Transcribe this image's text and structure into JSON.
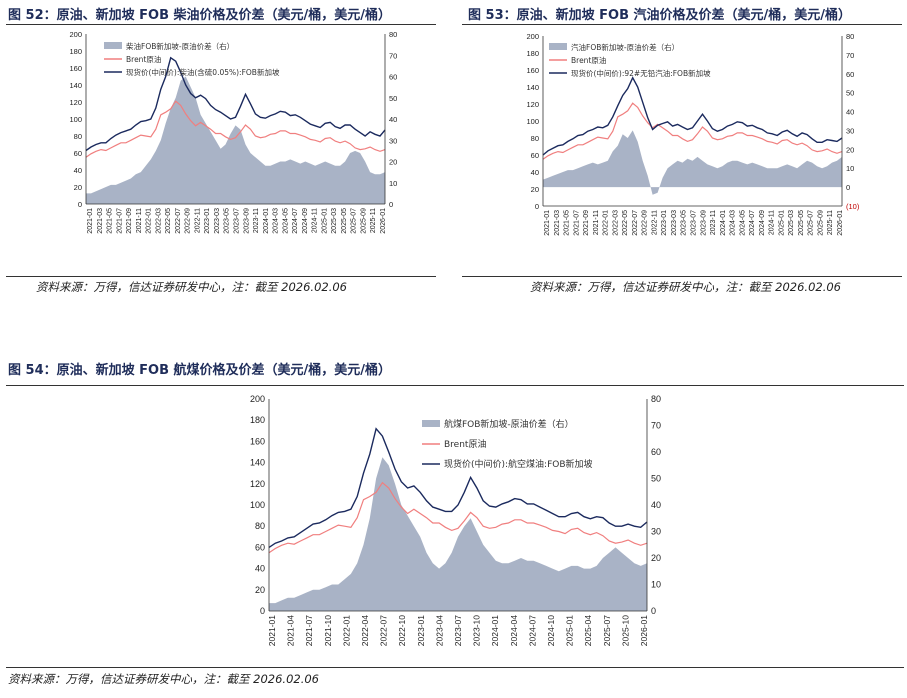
{
  "figures": [
    {
      "caption": "图 52：原油、新加坡 FOB 柴油价格及价差（美元/桶，美元/桶）",
      "source": "资料来源：万得，信达证券研发中心，注：截至 2026.02.06"
    },
    {
      "caption": "图 53：原油、新加坡 FOB 汽油价格及价差（美元/桶，美元/桶）",
      "source": "资料来源：万得，信达证券研发中心，注：截至 2026.02.06"
    },
    {
      "caption": "图 54：原油、新加坡 FOB 航煤价格及价差（美元/桶，美元/桶）",
      "source": "资料来源：万得，信达证券研发中心，注：截至 2026.02.06"
    }
  ],
  "colors": {
    "spread": "#a9b3c6",
    "brent": "#f07f7f",
    "spot": "#1b2a5e",
    "axis": "#333333"
  },
  "chart_data": [
    {
      "type": "line",
      "legend_position": "top-left",
      "left_ticks": [
        "0",
        "20",
        "40",
        "60",
        "80",
        "100",
        "120",
        "140",
        "160",
        "180",
        "200"
      ],
      "right_ticks": [
        "0",
        "10",
        "20",
        "30",
        "40",
        "50",
        "60",
        "70",
        "80"
      ],
      "ylim": [
        0,
        200
      ],
      "y2lim": [
        0,
        80
      ],
      "x_ticks": [
        "2021-01",
        "2021-03",
        "2021-05",
        "2021-07",
        "2021-09",
        "2021-11",
        "2022-01",
        "2022-03",
        "2022-05",
        "2022-07",
        "2022-09",
        "2022-11",
        "2023-01",
        "2023-03",
        "2023-05",
        "2023-07",
        "2023-09",
        "2023-11",
        "2024-01",
        "2024-03",
        "2024-05",
        "2024-07",
        "2024-09",
        "2024-11",
        "2025-01",
        "2025-03",
        "2025-05",
        "2025-07",
        "2025-09",
        "2025-11",
        "2026-01"
      ],
      "series": [
        {
          "name": "柴油FOB新加坡-原油价差（右）",
          "type": "area",
          "axis": "right",
          "values": [
            5,
            5,
            6,
            7,
            8,
            9,
            9,
            10,
            11,
            12,
            14,
            15,
            18,
            21,
            25,
            30,
            38,
            45,
            50,
            58,
            60,
            55,
            50,
            42,
            38,
            34,
            30,
            26,
            28,
            33,
            37,
            35,
            28,
            24,
            22,
            20,
            18,
            18,
            19,
            20,
            20,
            21,
            20,
            19,
            20,
            19,
            18,
            19,
            20,
            19,
            18,
            18,
            20,
            24,
            25,
            24,
            20,
            15,
            14,
            14,
            15
          ]
        },
        {
          "name": "Brent原油",
          "type": "line",
          "axis": "left",
          "values": [
            55,
            59,
            62,
            64,
            63,
            66,
            69,
            72,
            72,
            75,
            78,
            81,
            80,
            79,
            88,
            105,
            108,
            112,
            121,
            116,
            106,
            98,
            92,
            96,
            92,
            88,
            83,
            83,
            79,
            76,
            78,
            85,
            93,
            88,
            80,
            78,
            79,
            82,
            83,
            86,
            86,
            83,
            83,
            81,
            79,
            76,
            75,
            73,
            77,
            78,
            74,
            72,
            74,
            71,
            66,
            64,
            65,
            67,
            64,
            62,
            64
          ]
        },
        {
          "name": "现货价(中间价):柴油(含硫0.05%):FOB新加坡",
          "type": "line",
          "axis": "left",
          "values": [
            63,
            67,
            70,
            72,
            72,
            77,
            81,
            84,
            86,
            88,
            93,
            97,
            98,
            100,
            113,
            135,
            150,
            172,
            168,
            155,
            140,
            130,
            125,
            128,
            124,
            116,
            111,
            108,
            104,
            100,
            102,
            115,
            129,
            118,
            106,
            102,
            101,
            104,
            106,
            109,
            108,
            104,
            105,
            102,
            98,
            94,
            92,
            90,
            95,
            96,
            91,
            89,
            93,
            93,
            88,
            84,
            80,
            85,
            82,
            80,
            87
          ]
        }
      ]
    },
    {
      "type": "line",
      "legend_position": "top-left",
      "left_ticks": [
        "0",
        "20",
        "40",
        "60",
        "80",
        "100",
        "120",
        "140",
        "160",
        "180",
        "200"
      ],
      "right_ticks": [
        "(10)",
        "0",
        "10",
        "20",
        "30",
        "40",
        "50",
        "60",
        "70",
        "80"
      ],
      "ylim": [
        0,
        200
      ],
      "y2lim": [
        -10,
        80
      ],
      "x_ticks": [
        "2021-01",
        "2021-03",
        "2021-05",
        "2021-07",
        "2021-09",
        "2021-11",
        "2022-01",
        "2022-03",
        "2022-05",
        "2022-07",
        "2022-09",
        "2022-11",
        "2023-01",
        "2023-03",
        "2023-05",
        "2023-07",
        "2023-09",
        "2023-11",
        "2024-01",
        "2024-03",
        "2024-05",
        "2024-07",
        "2024-09",
        "2024-11",
        "2025-01",
        "2025-03",
        "2025-05",
        "2025-07",
        "2025-09",
        "2025-11",
        "2026-01"
      ],
      "series": [
        {
          "name": "汽油FOB新加坡-原油价差（右）",
          "type": "area",
          "axis": "right",
          "values": [
            4,
            5,
            6,
            7,
            8,
            9,
            9,
            10,
            11,
            12,
            13,
            12,
            13,
            14,
            19,
            22,
            28,
            26,
            30,
            24,
            14,
            6,
            -4,
            -3,
            5,
            10,
            12,
            14,
            13,
            15,
            14,
            16,
            14,
            12,
            11,
            10,
            11,
            13,
            14,
            14,
            13,
            12,
            13,
            12,
            11,
            10,
            10,
            10,
            11,
            12,
            11,
            10,
            12,
            14,
            13,
            11,
            10,
            11,
            13,
            14,
            16
          ]
        },
        {
          "name": "Brent原油",
          "type": "line",
          "axis": "left",
          "values": [
            55,
            59,
            62,
            64,
            63,
            66,
            69,
            72,
            72,
            75,
            78,
            81,
            80,
            79,
            88,
            105,
            108,
            112,
            121,
            116,
            106,
            98,
            92,
            96,
            92,
            88,
            83,
            83,
            79,
            76,
            78,
            85,
            93,
            88,
            80,
            78,
            79,
            82,
            83,
            86,
            86,
            83,
            83,
            81,
            79,
            76,
            75,
            73,
            77,
            78,
            74,
            72,
            74,
            71,
            66,
            64,
            65,
            67,
            64,
            62,
            64
          ]
        },
        {
          "name": "现货价(中间价):92#无铅汽油:FOB新加坡",
          "type": "line",
          "axis": "left",
          "values": [
            60,
            65,
            68,
            71,
            72,
            76,
            79,
            83,
            84,
            88,
            90,
            93,
            92,
            95,
            105,
            118,
            130,
            138,
            151,
            140,
            122,
            104,
            90,
            95,
            97,
            99,
            94,
            96,
            93,
            90,
            92,
            100,
            108,
            100,
            91,
            88,
            90,
            94,
            96,
            99,
            98,
            94,
            95,
            92,
            90,
            86,
            85,
            83,
            87,
            89,
            85,
            82,
            86,
            84,
            79,
            75,
            75,
            78,
            77,
            76,
            80
          ]
        }
      ]
    },
    {
      "type": "line",
      "legend_position": "top-right",
      "left_ticks": [
        "0",
        "20",
        "40",
        "60",
        "80",
        "100",
        "120",
        "140",
        "160",
        "180",
        "200"
      ],
      "right_ticks": [
        "0",
        "10",
        "20",
        "30",
        "40",
        "50",
        "60",
        "70",
        "80"
      ],
      "ylim": [
        0,
        200
      ],
      "y2lim": [
        0,
        80
      ],
      "x_ticks": [
        "2021-01",
        "2021-04",
        "2021-07",
        "2021-10",
        "2022-01",
        "2022-04",
        "2022-07",
        "2022-10",
        "2023-01",
        "2023-04",
        "2023-07",
        "2023-10",
        "2024-01",
        "2024-04",
        "2024-07",
        "2024-10",
        "2025-01",
        "2025-04",
        "2025-07",
        "2025-10",
        "2026-01"
      ],
      "series": [
        {
          "name": "航煤FOB新加坡-原油价差（右）",
          "type": "area",
          "axis": "right",
          "values": [
            3,
            3,
            4,
            5,
            5,
            6,
            7,
            8,
            8,
            9,
            10,
            10,
            12,
            14,
            18,
            25,
            35,
            50,
            58,
            55,
            48,
            40,
            36,
            32,
            28,
            22,
            18,
            16,
            18,
            22,
            28,
            32,
            35,
            30,
            25,
            22,
            19,
            18,
            18,
            19,
            20,
            19,
            19,
            18,
            17,
            16,
            15,
            16,
            17,
            17,
            16,
            16,
            17,
            20,
            22,
            24,
            22,
            20,
            18,
            17,
            18
          ]
        },
        {
          "name": "Brent原油",
          "type": "line",
          "axis": "left",
          "values": [
            55,
            59,
            62,
            64,
            63,
            66,
            69,
            72,
            72,
            75,
            78,
            81,
            80,
            79,
            88,
            105,
            108,
            112,
            121,
            116,
            106,
            98,
            92,
            96,
            92,
            88,
            83,
            83,
            79,
            76,
            78,
            85,
            93,
            88,
            80,
            78,
            79,
            82,
            83,
            86,
            86,
            83,
            83,
            81,
            79,
            76,
            75,
            73,
            77,
            78,
            74,
            72,
            74,
            71,
            66,
            64,
            65,
            67,
            64,
            62,
            64
          ]
        },
        {
          "name": "现货价(中间价):航空煤油:FOB新加坡",
          "type": "line",
          "axis": "left",
          "values": [
            60,
            64,
            66,
            69,
            70,
            74,
            78,
            82,
            83,
            86,
            90,
            93,
            94,
            96,
            108,
            130,
            148,
            172,
            165,
            150,
            134,
            122,
            116,
            118,
            112,
            104,
            98,
            96,
            94,
            94,
            100,
            112,
            126,
            116,
            104,
            99,
            98,
            101,
            103,
            106,
            105,
            101,
            101,
            98,
            95,
            92,
            89,
            89,
            92,
            93,
            89,
            87,
            89,
            88,
            83,
            80,
            80,
            82,
            80,
            79,
            84
          ]
        }
      ]
    }
  ]
}
